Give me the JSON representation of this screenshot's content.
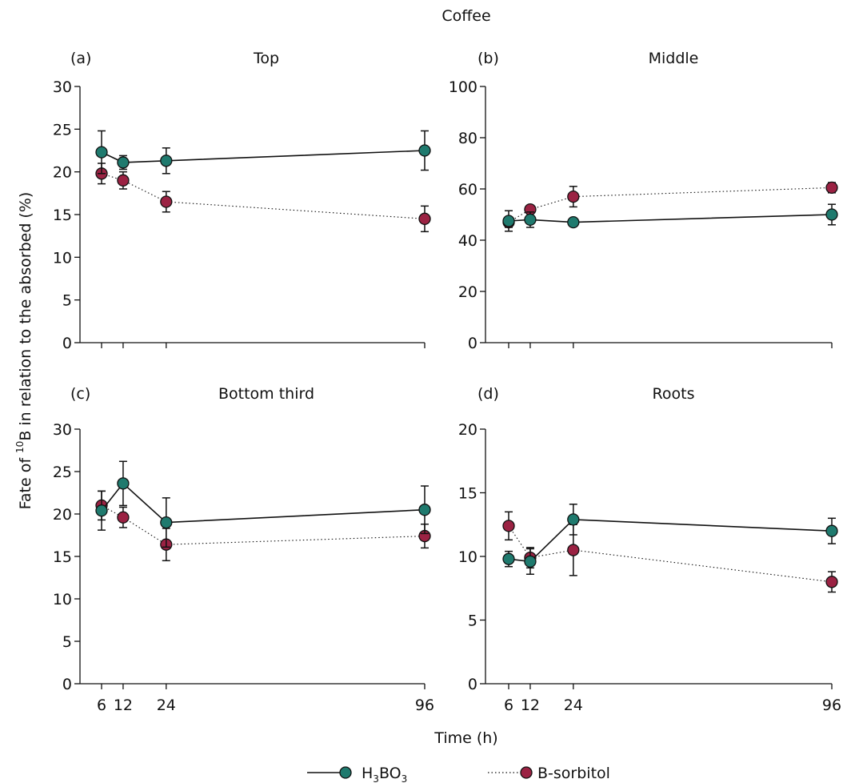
{
  "figure": {
    "title": "Coffee",
    "ylabel_prefix": "Fate of ",
    "ylabel_sup": "10",
    "ylabel_suffix": "B in relation to the absorbed (%)",
    "xlabel": "Time (h)"
  },
  "legend": {
    "position": "bottom-center",
    "items": [
      {
        "key": "h3bo3",
        "label_main": "H",
        "label_sub1": "3",
        "label_mid": "BO",
        "label_sub2": "3",
        "color": "#1f7a6e",
        "line": "solid"
      },
      {
        "key": "bsorbitol",
        "label_main": "B-sorbitol",
        "color": "#9b2243",
        "line": "dotted"
      }
    ]
  },
  "chart_data": [
    {
      "type": "line",
      "letter": "(a)",
      "title": "Top",
      "x": [
        6,
        12,
        24,
        96
      ],
      "xticks": [
        "",
        "",
        "",
        ""
      ],
      "ylim": [
        0,
        30
      ],
      "yticks": [
        0,
        5,
        10,
        15,
        20,
        25,
        30
      ],
      "series": [
        {
          "key": "h3bo3",
          "values": [
            22.3,
            21.1,
            21.3,
            22.5
          ],
          "err": [
            2.5,
            0.8,
            1.5,
            2.3
          ]
        },
        {
          "key": "bsorbitol",
          "values": [
            19.8,
            19.0,
            16.5,
            14.5
          ],
          "err": [
            1.2,
            1.0,
            1.2,
            1.5
          ]
        }
      ]
    },
    {
      "type": "line",
      "letter": "(b)",
      "title": "Middle",
      "x": [
        6,
        12,
        24,
        96
      ],
      "xticks": [
        "",
        "",
        "",
        ""
      ],
      "ylim": [
        0,
        100
      ],
      "yticks": [
        0,
        20,
        40,
        60,
        80,
        100
      ],
      "series": [
        {
          "key": "h3bo3",
          "values": [
            47.5,
            48.0,
            47.0,
            50.0
          ],
          "err": [
            4.0,
            3.0,
            1.5,
            4.0
          ]
        },
        {
          "key": "bsorbitol",
          "values": [
            47.0,
            52.0,
            57.0,
            60.5
          ],
          "err": [
            2.0,
            1.5,
            4.0,
            2.0
          ]
        }
      ]
    },
    {
      "type": "line",
      "letter": "(c)",
      "title": "Bottom third",
      "x": [
        6,
        12,
        24,
        96
      ],
      "xticks": [
        "6",
        "12",
        "24",
        "96"
      ],
      "ylim": [
        0,
        30
      ],
      "yticks": [
        0,
        5,
        10,
        15,
        20,
        25,
        30
      ],
      "series": [
        {
          "key": "h3bo3",
          "values": [
            20.4,
            23.6,
            19.0,
            20.5
          ],
          "err": [
            2.3,
            2.6,
            2.9,
            2.8
          ]
        },
        {
          "key": "bsorbitol",
          "values": [
            21.0,
            19.6,
            16.4,
            17.4
          ],
          "err": [
            1.7,
            1.2,
            1.9,
            1.4
          ]
        }
      ]
    },
    {
      "type": "line",
      "letter": "(d)",
      "title": "Roots",
      "x": [
        6,
        12,
        24,
        96
      ],
      "xticks": [
        "6",
        "12",
        "24",
        "96"
      ],
      "ylim": [
        0,
        20
      ],
      "yticks": [
        0,
        5,
        10,
        15,
        20
      ],
      "series": [
        {
          "key": "h3bo3",
          "values": [
            9.8,
            9.6,
            12.9,
            12.0
          ],
          "err": [
            0.6,
            1.0,
            1.2,
            1.0
          ]
        },
        {
          "key": "bsorbitol",
          "values": [
            12.4,
            9.9,
            10.5,
            8.0
          ],
          "err": [
            1.1,
            0.8,
            2.0,
            0.8
          ]
        }
      ]
    }
  ]
}
